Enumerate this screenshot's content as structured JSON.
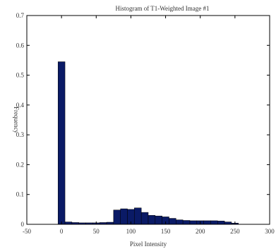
{
  "chart_data": {
    "type": "bar",
    "title": "Histogram of T1-Weighted Image #1",
    "xlabel": "Pixel Intensity",
    "ylabel": "Frequency",
    "xlim": [
      -50,
      300
    ],
    "ylim": [
      0,
      0.7
    ],
    "x_ticks": [
      -50,
      0,
      50,
      100,
      150,
      200,
      250,
      300
    ],
    "y_ticks": [
      0,
      0.1,
      0.2,
      0.3,
      0.4,
      0.5,
      0.6,
      0.7
    ],
    "bin_width": 10,
    "bar_color": "#0a1a66",
    "grid": false,
    "legend": "none",
    "bins": [
      {
        "x": 0,
        "value": 0.545
      },
      {
        "x": 10,
        "value": 0.008
      },
      {
        "x": 20,
        "value": 0.006
      },
      {
        "x": 30,
        "value": 0.005
      },
      {
        "x": 40,
        "value": 0.005
      },
      {
        "x": 50,
        "value": 0.005
      },
      {
        "x": 60,
        "value": 0.006
      },
      {
        "x": 70,
        "value": 0.007
      },
      {
        "x": 80,
        "value": 0.048
      },
      {
        "x": 90,
        "value": 0.052
      },
      {
        "x": 100,
        "value": 0.05
      },
      {
        "x": 110,
        "value": 0.055
      },
      {
        "x": 120,
        "value": 0.04
      },
      {
        "x": 130,
        "value": 0.03
      },
      {
        "x": 140,
        "value": 0.028
      },
      {
        "x": 150,
        "value": 0.025
      },
      {
        "x": 160,
        "value": 0.02
      },
      {
        "x": 170,
        "value": 0.015
      },
      {
        "x": 180,
        "value": 0.013
      },
      {
        "x": 190,
        "value": 0.012
      },
      {
        "x": 200,
        "value": 0.012
      },
      {
        "x": 210,
        "value": 0.012
      },
      {
        "x": 220,
        "value": 0.012
      },
      {
        "x": 230,
        "value": 0.011
      },
      {
        "x": 240,
        "value": 0.008
      },
      {
        "x": 250,
        "value": 0.004
      }
    ]
  }
}
